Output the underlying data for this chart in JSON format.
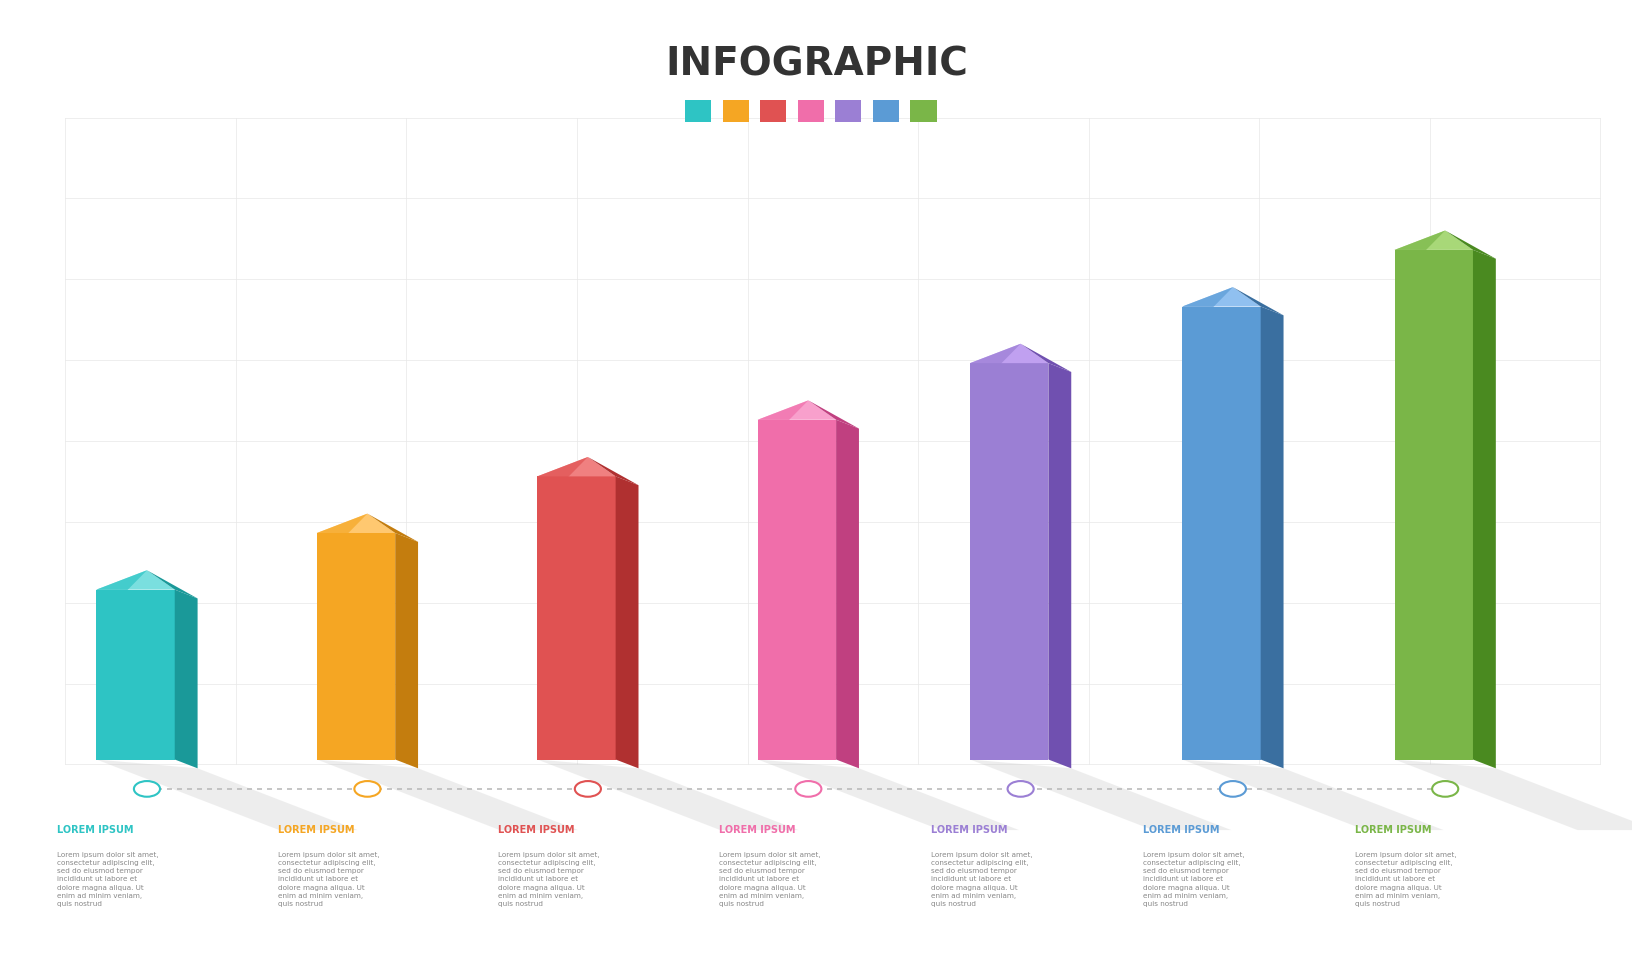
{
  "title": "INFOGRAPHIC",
  "background_color": "#ffffff",
  "grid_color": "#e8e8e8",
  "bar_colors": [
    "#2ec4c4",
    "#f5a623",
    "#e05252",
    "#f06eaa",
    "#9b7fd4",
    "#5b9bd5",
    "#7ab648"
  ],
  "bar_colors_dark": [
    "#1a9999",
    "#c47d0e",
    "#b03030",
    "#c04080",
    "#7050b0",
    "#3a6fa0",
    "#4a8a20"
  ],
  "bar_colors_light": [
    "#7adfdf",
    "#ffc870",
    "#f08080",
    "#f8a0cc",
    "#c0a0f0",
    "#90c0f0",
    "#a8d878"
  ],
  "bar_heights": [
    3,
    4,
    5,
    6,
    7,
    8,
    9
  ],
  "legend_colors": [
    "#2ec4c4",
    "#f5a623",
    "#e05252",
    "#f06eaa",
    "#9b7fd4",
    "#5b9bd5",
    "#7ab648"
  ],
  "timeline_colors": [
    "#2ec4c4",
    "#f5a623",
    "#e05252",
    "#f06eaa",
    "#9b7fd4",
    "#5b9bd5",
    "#7ab648"
  ],
  "section_titles": [
    "LOREM IPSUM",
    "LOREM IPSUM",
    "LOREM IPSUM",
    "LOREM IPSUM",
    "LOREM IPSUM",
    "LOREM IPSUM",
    "LOREM IPSUM"
  ],
  "section_title_colors": [
    "#2ec4c4",
    "#f5a623",
    "#e05252",
    "#f06eaa",
    "#9b7fd4",
    "#5b9bd5",
    "#7ab648"
  ],
  "body_text": "Lorem ipsum dolor sit amet,\nconsectetur adipiscing elit,\nsed do eiusmod tempor\nincididunt ut labore et\ndolore magna aliqua. Ut\nenim ad minim veniam,\nquis nostrud",
  "figsize": [
    16.33,
    9.8
  ],
  "dpi": 100
}
